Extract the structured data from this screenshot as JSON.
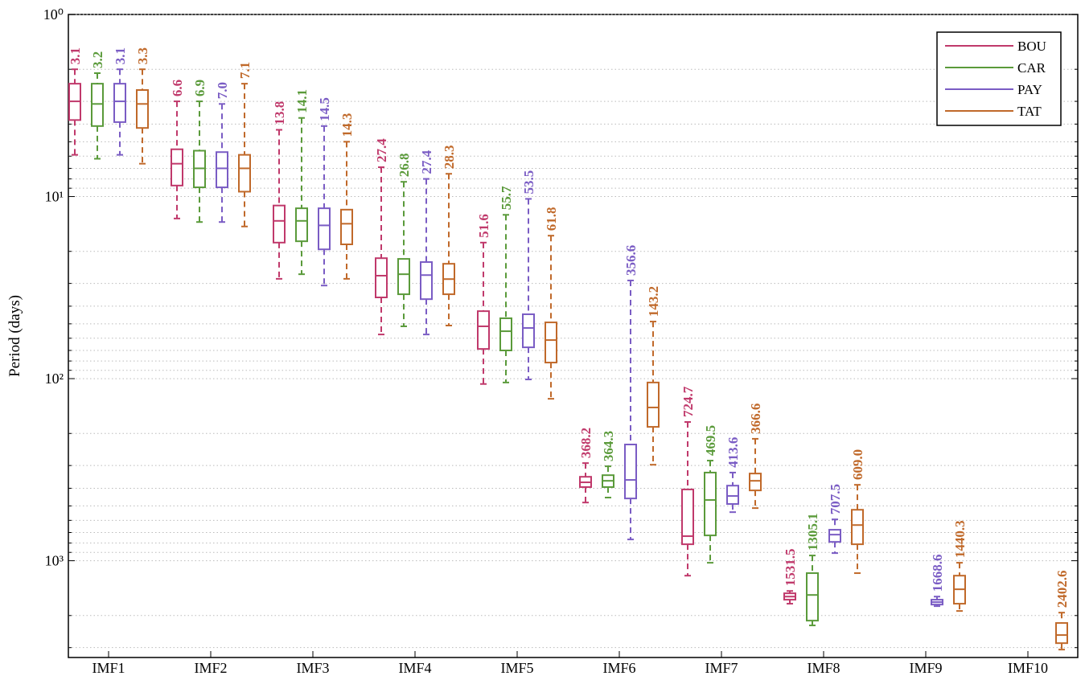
{
  "chart_data": {
    "type": "box",
    "ylabel": "Period (days)",
    "categories": [
      "IMF1",
      "IMF2",
      "IMF3",
      "IMF4",
      "IMF5",
      "IMF6",
      "IMF7",
      "IMF8",
      "IMF9",
      "IMF10"
    ],
    "ylim": [
      1,
      3400
    ],
    "log_scale": true,
    "inverted": true,
    "grid": "major and minor",
    "legend": "upper right",
    "yticks": [
      {
        "value": 1,
        "label": "10⁰"
      },
      {
        "value": 10,
        "label": "10¹"
      },
      {
        "value": 100,
        "label": "10²"
      },
      {
        "value": 1000,
        "label": "10³"
      }
    ],
    "series": [
      {
        "name": "BOU",
        "color": "#c0396b",
        "whislo": [
          2.0,
          3.0,
          4.3,
          6.9,
          17.9,
          291,
          173,
          1466,
          null,
          null
        ],
        "q1": [
          2.4,
          5.5,
          11.2,
          21.8,
          42.6,
          346,
          406,
          1510,
          null,
          null
        ],
        "med": [
          3.0,
          6.6,
          13.6,
          27.2,
          51.6,
          371,
          733,
          1574,
          null,
          null
        ],
        "q3": [
          3.8,
          8.7,
          17.9,
          35.8,
          68.7,
          394,
          812,
          1637,
          null,
          null
        ],
        "whishi": [
          5.9,
          13.2,
          28.3,
          57.2,
          107,
          479,
          1208,
          1722,
          null,
          null
        ],
        "values": [
          3.1,
          6.6,
          13.8,
          27.4,
          51.6,
          368.2,
          724.7,
          1531.5,
          null,
          null
        ],
        "value_labels": [
          "3.1",
          "6.6",
          "13.8",
          "27.4",
          "51.6",
          "368.2",
          "724.7",
          "1531.5",
          null,
          null
        ]
      },
      {
        "name": "CAR",
        "color": "#5a9a3a",
        "whislo": [
          2.1,
          3.0,
          3.7,
          8.3,
          12.6,
          303,
          282,
          936,
          null,
          null
        ],
        "q1": [
          2.4,
          5.6,
          11.6,
          22.0,
          46.6,
          339,
          328,
          1170,
          null,
          null
        ],
        "med": [
          3.1,
          7.0,
          13.6,
          26.7,
          54.9,
          364,
          464,
          1542,
          null,
          null
        ],
        "q3": [
          4.1,
          8.9,
          17.6,
          34.4,
          70,
          394,
          726,
          2133,
          null,
          null
        ],
        "whishi": [
          6.2,
          13.8,
          26.7,
          51.6,
          105,
          450,
          1026,
          2266,
          null,
          null
        ],
        "values": [
          3.2,
          6.9,
          14.1,
          26.8,
          55.7,
          364.3,
          469.5,
          1305.1,
          null,
          null
        ],
        "value_labels": [
          "3.2",
          "6.9",
          "14.1",
          "26.8",
          "55.7",
          "364.3",
          "469.5",
          "1305.1",
          null,
          null
        ]
      },
      {
        "name": "PAY",
        "color": "#7a5cc4",
        "whislo": [
          2.0,
          3.1,
          4.1,
          8.0,
          10.3,
          28.9,
          328,
          593,
          1574,
          null
        ],
        "q1": [
          2.4,
          5.7,
          11.6,
          22.9,
          44.3,
          230,
          387,
          676,
          1637,
          null
        ],
        "med": [
          3.0,
          7.0,
          14.4,
          27.0,
          52.7,
          360,
          441,
          719,
          1688,
          null
        ],
        "q3": [
          3.9,
          8.9,
          19.5,
          36.6,
          67.3,
          455,
          488,
          788,
          1741,
          null
        ],
        "whishi": [
          5.9,
          13.8,
          30.8,
          57.2,
          101,
          764,
          541,
          908,
          1776,
          null
        ],
        "values": [
          3.1,
          7.0,
          14.5,
          27.4,
          53.5,
          356.6,
          413.6,
          707.5,
          1668.6,
          null
        ],
        "value_labels": [
          "3.1",
          "7.0",
          "14.5",
          "27.4",
          "53.5",
          "356.6",
          "413.6",
          "707.5",
          "1668.6",
          null
        ]
      },
      {
        "name": "TAT",
        "color": "#c0692a",
        "whislo": [
          2.0,
          2.4,
          5.0,
          7.5,
          16.4,
          48.6,
          214,
          383,
          1026,
          1928
        ],
        "q1": [
          2.6,
          5.9,
          11.8,
          23.4,
          49.1,
          105,
          332,
          525,
          1208,
          2198
        ],
        "med": [
          3.1,
          7.0,
          14.1,
          28.4,
          61.4,
          144,
          364,
          637,
          1435,
          2560
        ],
        "q3": [
          4.2,
          9.4,
          18.3,
          34.4,
          81.6,
          184,
          411,
          812,
          1722,
          2836
        ],
        "whishi": [
          6.6,
          14.6,
          28.3,
          51.1,
          129,
          297,
          514,
          1170,
          1888,
          3076
        ],
        "values": [
          3.3,
          7.1,
          14.3,
          28.3,
          61.8,
          143.2,
          366.6,
          609.0,
          1440.3,
          2402.6
        ],
        "value_labels": [
          "3.3",
          "7.1",
          "14.3",
          "28.3",
          "61.8",
          "143.2",
          "366.6",
          "609.0",
          "1440.3",
          "2402.6"
        ]
      }
    ]
  }
}
